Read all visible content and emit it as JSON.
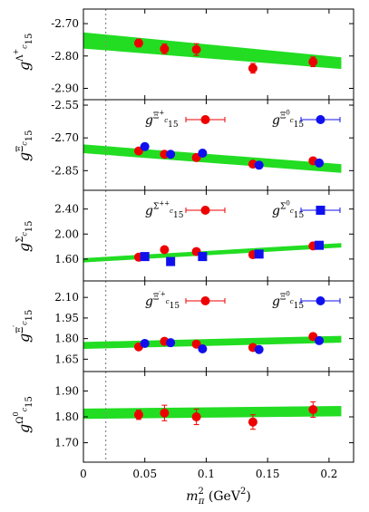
{
  "colors": {
    "band": "#22dd22",
    "red": "#ee0000",
    "blue": "#1010ee",
    "vline": "#888888"
  },
  "chart_data": {
    "type": "scatter",
    "xlabel": "m_π^2 (GeV^2)",
    "xlabel_parts": {
      "base": "m",
      "sub": "π",
      "sup": "2",
      "unit_open": " (GeV",
      "unit_sup": "2",
      "unit_close": ")"
    },
    "xlim": [
      0,
      0.22
    ],
    "xticks": [
      0,
      0.05,
      0.1,
      0.15,
      0.2
    ],
    "xtick_labels": [
      "0",
      "0.05",
      "0.1",
      "0.15",
      "0.2"
    ],
    "vline_x": 0.0182,
    "panels": [
      {
        "id": "lambda_c",
        "ylabel": {
          "base": "g",
          "sub": "15",
          "sup_base": "Λ",
          "sup_sup": "+",
          "sup_sub": "c"
        },
        "ylim": [
          -2.935,
          -2.655
        ],
        "yticks": [
          -2.9,
          -2.8,
          -2.7
        ],
        "ytick_labels": [
          "-2.90",
          "-2.80",
          "-2.70"
        ],
        "band": {
          "x": [
            0,
            0.21
          ],
          "center": [
            -2.752,
            -2.822
          ],
          "halfwidth": [
            0.025,
            0.018
          ]
        },
        "series": [
          {
            "color": "red",
            "marker": "circle",
            "x": [
              0.045,
              0.066,
              0.092,
              0.138,
              0.187
            ],
            "y": [
              -2.76,
              -2.778,
              -2.78,
              -2.838,
              -2.818
            ],
            "yerr": [
              0.012,
              0.015,
              0.018,
              0.015,
              0.015
            ]
          }
        ],
        "legend": []
      },
      {
        "id": "xi_c",
        "ylabel": {
          "base": "g",
          "sub": "15",
          "sup_base": "Ξ",
          "sup_sup": "",
          "sup_sub": "c"
        },
        "ylim": [
          -2.94,
          -2.525
        ],
        "yticks": [
          -2.85,
          -2.7,
          -2.55
        ],
        "ytick_labels": [
          "-2.85",
          "-2.70",
          "-2.55"
        ],
        "band": {
          "x": [
            0,
            0.21
          ],
          "center": [
            -2.75,
            -2.84
          ],
          "halfwidth": [
            0.02,
            0.02
          ]
        },
        "series": [
          {
            "color": "red",
            "marker": "circle",
            "x": [
              0.045,
              0.066,
              0.092,
              0.138,
              0.187
            ],
            "y": [
              -2.76,
              -2.775,
              -2.79,
              -2.82,
              -2.805
            ],
            "yerr": [
              0.01,
              0.01,
              0.01,
              0.01,
              0.01
            ]
          },
          {
            "color": "blue",
            "marker": "circle",
            "x": [
              0.05,
              0.071,
              0.097,
              0.143,
              0.192
            ],
            "y": [
              -2.74,
              -2.775,
              -2.77,
              -2.825,
              -2.815
            ],
            "yerr": [
              0.01,
              0.01,
              0.01,
              0.01,
              0.01
            ]
          }
        ],
        "legend": [
          {
            "color": "red",
            "marker": "circle",
            "label": {
              "base": "g",
              "sub": "15",
              "sup_base": "Ξ",
              "sup_sup": "+",
              "sup_sub": "c"
            }
          },
          {
            "color": "blue",
            "marker": "circle",
            "label": {
              "base": "g",
              "sub": "15",
              "sup_base": "Ξ",
              "sup_sup": "0",
              "sup_sub": "c"
            }
          }
        ]
      },
      {
        "id": "sigma_c",
        "ylabel": {
          "base": "g",
          "sub": "15",
          "sup_base": "Σ",
          "sup_sup": "",
          "sup_sub": "c"
        },
        "ylim": [
          1.25,
          2.7
        ],
        "yticks": [
          1.6,
          2.0,
          2.4
        ],
        "ytick_labels": [
          "1.60",
          "2.00",
          "2.40"
        ],
        "band": {
          "x": [
            0,
            0.21
          ],
          "center": [
            1.58,
            1.82
          ],
          "halfwidth": [
            0.035,
            0.035
          ]
        },
        "series": [
          {
            "color": "red",
            "marker": "circle",
            "x": [
              0.045,
              0.066,
              0.092,
              0.138,
              0.187
            ],
            "y": [
              1.63,
              1.75,
              1.72,
              1.67,
              1.81
            ],
            "yerr": [
              0.02,
              0.04,
              0.03,
              0.03,
              0.03
            ]
          },
          {
            "color": "blue",
            "marker": "square",
            "x": [
              0.05,
              0.071,
              0.097,
              0.143,
              0.192
            ],
            "y": [
              1.64,
              1.56,
              1.64,
              1.68,
              1.82
            ],
            "yerr": [
              0.02,
              0.06,
              0.03,
              0.03,
              0.03
            ]
          }
        ],
        "legend": [
          {
            "color": "red",
            "marker": "circle",
            "label": {
              "base": "g",
              "sub": "15",
              "sup_base": "Σ",
              "sup_sup": "++",
              "sup_sub": "c"
            }
          },
          {
            "color": "blue",
            "marker": "square",
            "label": {
              "base": "g",
              "sub": "15",
              "sup_base": "Σ",
              "sup_sup": "0",
              "sup_sub": "c"
            }
          }
        ]
      },
      {
        "id": "xi_c_prime",
        "ylabel": {
          "base": "g",
          "sub": "15",
          "sup_base": "Ξ",
          "sup_sup": "′",
          "sup_sub": "c"
        },
        "ylim": [
          1.56,
          2.22
        ],
        "yticks": [
          1.65,
          1.8,
          1.95,
          2.1
        ],
        "ytick_labels": [
          "1.65",
          "1.80",
          "1.95",
          "2.10"
        ],
        "band": {
          "x": [
            0,
            0.21
          ],
          "center": [
            1.75,
            1.795
          ],
          "halfwidth": [
            0.025,
            0.025
          ]
        },
        "series": [
          {
            "color": "red",
            "marker": "circle",
            "x": [
              0.045,
              0.066,
              0.092,
              0.138,
              0.187
            ],
            "y": [
              1.74,
              1.78,
              1.76,
              1.735,
              1.815
            ],
            "yerr": [
              0.015,
              0.02,
              0.02,
              0.02,
              0.025
            ]
          },
          {
            "color": "blue",
            "marker": "circle",
            "x": [
              0.05,
              0.071,
              0.097,
              0.143,
              0.192
            ],
            "y": [
              1.765,
              1.77,
              1.725,
              1.72,
              1.785
            ],
            "yerr": [
              0.015,
              0.02,
              0.02,
              0.015,
              0.015
            ]
          }
        ],
        "legend": [
          {
            "color": "red",
            "marker": "circle",
            "label": {
              "base": "g",
              "sub": "15",
              "sup_base": "Ξ",
              "sup_sup": "′+",
              "sup_sub": "c"
            }
          },
          {
            "color": "blue",
            "marker": "circle",
            "label": {
              "base": "g",
              "sub": "15",
              "sup_base": "Ξ",
              "sup_sup": "0",
              "sup_sub": "c"
            }
          }
        ]
      },
      {
        "id": "omega_c",
        "ylabel": {
          "base": "g",
          "sub": "15",
          "sup_base": "Ω",
          "sup_sup": "0",
          "sup_sub": "c"
        },
        "ylim": [
          1.625,
          1.975
        ],
        "yticks": [
          1.7,
          1.8,
          1.9
        ],
        "ytick_labels": [
          "1.70",
          "1.80",
          "1.90"
        ],
        "band": {
          "x": [
            0,
            0.21
          ],
          "center": [
            1.812,
            1.822
          ],
          "halfwidth": [
            0.02,
            0.02
          ]
        },
        "series": [
          {
            "color": "red",
            "marker": "circle",
            "x": [
              0.045,
              0.066,
              0.092,
              0.138,
              0.187
            ],
            "y": [
              1.808,
              1.815,
              1.8,
              1.78,
              1.828
            ],
            "yerr": [
              0.018,
              0.03,
              0.03,
              0.028,
              0.03
            ]
          }
        ],
        "legend": []
      }
    ]
  }
}
